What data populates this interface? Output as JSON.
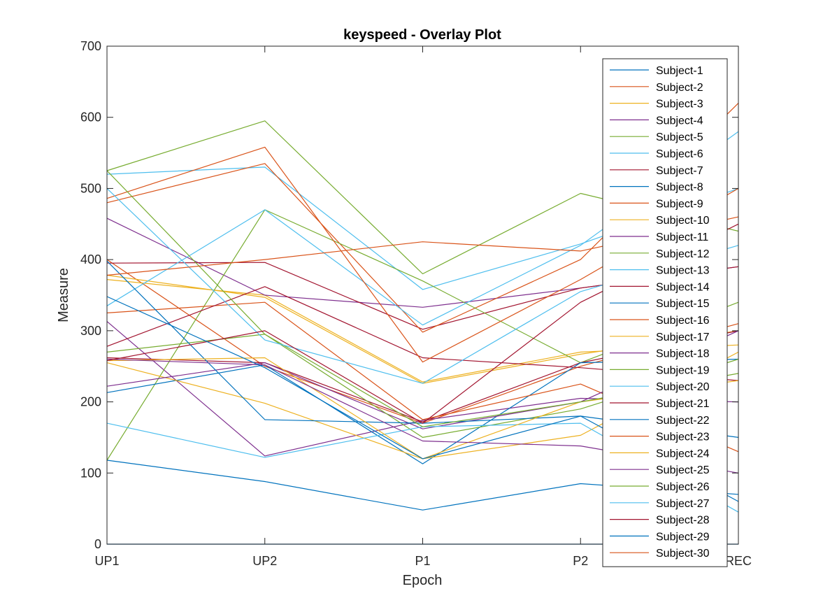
{
  "chart_data": {
    "type": "line",
    "title": "keyspeed - Overlay Plot",
    "xlabel": "Epoch",
    "ylabel": "Measure",
    "categories": [
      "UP1",
      "UP2",
      "P1",
      "P2",
      "REC"
    ],
    "ylim": [
      0,
      700
    ],
    "yticks": [
      0,
      100,
      200,
      300,
      400,
      500,
      600,
      700
    ],
    "grid": false,
    "legend_position": "top-right",
    "colors": [
      "#0072BD",
      "#D95319",
      "#EDB120",
      "#7E2F8E",
      "#77AC30",
      "#4DBEEE",
      "#A2142F"
    ],
    "series": [
      {
        "name": "Subject-1",
        "values": [
          0,
          0,
          0,
          0,
          0
        ]
      },
      {
        "name": "Subject-2",
        "values": [
          400,
          250,
          170,
          250,
          310
        ]
      },
      {
        "name": "Subject-3",
        "values": [
          372,
          350,
          228,
          270,
          280
        ]
      },
      {
        "name": "Subject-4",
        "values": [
          458,
          350,
          333,
          360,
          390
        ]
      },
      {
        "name": "Subject-5",
        "values": [
          525,
          595,
          380,
          493,
          440
        ]
      },
      {
        "name": "Subject-6",
        "values": [
          520,
          530,
          358,
          422,
          500
        ]
      },
      {
        "name": "Subject-7",
        "values": [
          395,
          396,
          302,
          360,
          390
        ]
      },
      {
        "name": "Subject-8",
        "values": [
          118,
          88,
          48,
          85,
          70
        ]
      },
      {
        "name": "Subject-9",
        "values": [
          480,
          535,
          298,
          400,
          620
        ]
      },
      {
        "name": "Subject-10",
        "values": [
          378,
          347,
          226,
          267,
          300
        ]
      },
      {
        "name": "Subject-11",
        "values": [
          313,
          124,
          174,
          205,
          200
        ]
      },
      {
        "name": "Subject-12",
        "values": [
          118,
          470,
          370,
          255,
          340
        ]
      },
      {
        "name": "Subject-13",
        "values": [
          335,
          470,
          308,
          420,
          580
        ]
      },
      {
        "name": "Subject-14",
        "values": [
          262,
          255,
          172,
          255,
          300
        ]
      },
      {
        "name": "Subject-15",
        "values": [
          213,
          252,
          113,
          255,
          260
        ]
      },
      {
        "name": "Subject-16",
        "values": [
          325,
          340,
          175,
          225,
          130
        ]
      },
      {
        "name": "Subject-17",
        "values": [
          255,
          198,
          120,
          153,
          270
        ]
      },
      {
        "name": "Subject-18",
        "values": [
          222,
          255,
          162,
          200,
          300
        ]
      },
      {
        "name": "Subject-19",
        "values": [
          270,
          295,
          150,
          190,
          260
        ]
      },
      {
        "name": "Subject-20",
        "values": [
          170,
          122,
          165,
          170,
          45
        ]
      },
      {
        "name": "Subject-21",
        "values": [
          278,
          362,
          262,
          248,
          230
        ]
      },
      {
        "name": "Subject-22",
        "values": [
          398,
          175,
          170,
          180,
          150
        ]
      },
      {
        "name": "Subject-23",
        "values": [
          486,
          558,
          256,
          372,
          500
        ]
      },
      {
        "name": "Subject-24",
        "values": [
          258,
          262,
          120,
          200,
          230
        ]
      },
      {
        "name": "Subject-25",
        "values": [
          260,
          252,
          145,
          138,
          100
        ]
      },
      {
        "name": "Subject-26",
        "values": [
          525,
          295,
          165,
          200,
          240
        ]
      },
      {
        "name": "Subject-27",
        "values": [
          500,
          287,
          226,
          355,
          420
        ]
      },
      {
        "name": "Subject-28",
        "values": [
          258,
          300,
          170,
          340,
          450
        ]
      },
      {
        "name": "Subject-29",
        "values": [
          348,
          248,
          120,
          180,
          60
        ]
      },
      {
        "name": "Subject-30",
        "values": [
          378,
          400,
          425,
          412,
          460
        ]
      }
    ]
  }
}
